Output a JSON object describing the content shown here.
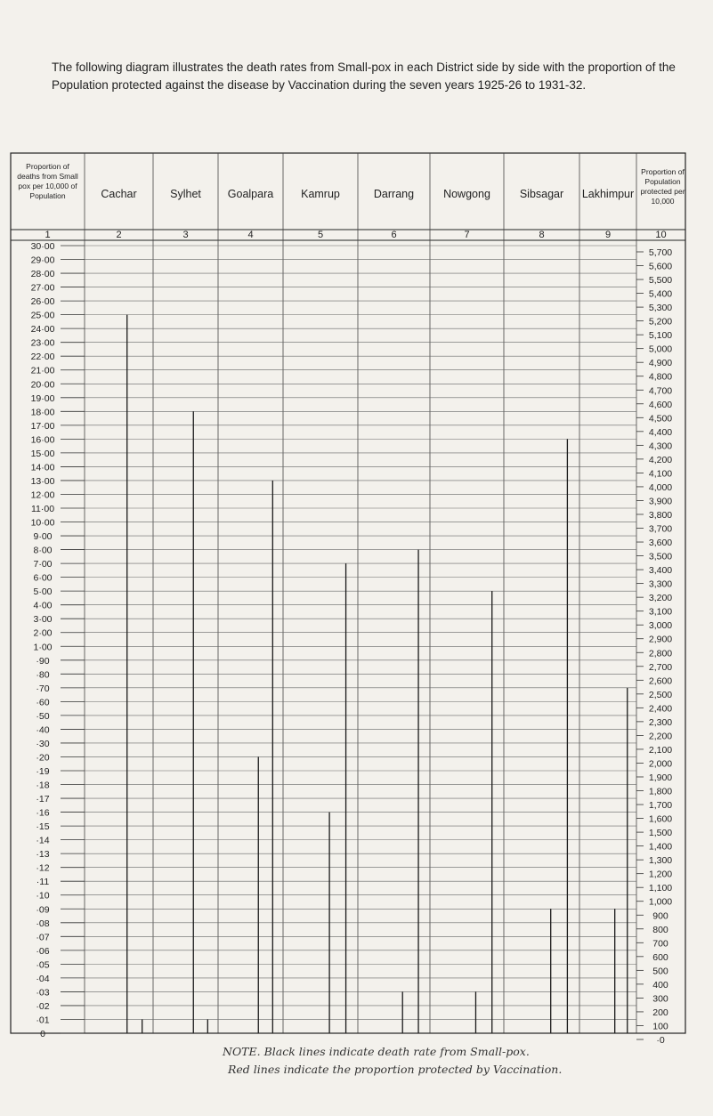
{
  "caption": "The following diagram illustrates the death rates from Small-pox in each District side by side with the proportion of the Population protected against the disease by Vaccination during the seven years 1925-26 to 1931-32.",
  "header": {
    "left_title": "Proportion of deaths from Small pox per 10,000 of Population",
    "right_title": "Proportion of Population protected per 10,000"
  },
  "chart_data": {
    "type": "bar",
    "categories": [
      "Cachar",
      "Sylhet",
      "Goalpara",
      "Kamrup",
      "Darrang",
      "Nowgong",
      "Sibsagar",
      "Lakhimpur"
    ],
    "column_numbers": [
      "1",
      "2",
      "3",
      "4",
      "5",
      "6",
      "7",
      "8",
      "9",
      "10"
    ],
    "left_ticks": [
      "30·00",
      "29·00",
      "28·00",
      "27·00",
      "26·00",
      "25·00",
      "24·00",
      "23·00",
      "22·00",
      "21·00",
      "20·00",
      "19·00",
      "18·00",
      "17·00",
      "16·00",
      "15·00",
      "14·00",
      "13·00",
      "12·00",
      "11·00",
      "10·00",
      "9·00",
      "8·00",
      "7·00",
      "6·00",
      "5·00",
      "4·00",
      "3·00",
      "2·00",
      "1·00",
      "·90",
      "·80",
      "·70",
      "·60",
      "·50",
      "·40",
      "·30",
      "·20",
      "·19",
      "·18",
      "·17",
      "·16",
      "·15",
      "·14",
      "·13",
      "·12",
      "·11",
      "·10",
      "·09",
      "·08",
      "·07",
      "·06",
      "·05",
      "·04",
      "·03",
      "·02",
      "·01",
      "0"
    ],
    "right_ticks": [
      "5,700",
      "5,600",
      "5,500",
      "5,400",
      "5,300",
      "5,200",
      "5,100",
      "5,000",
      "4,900",
      "4,800",
      "4,700",
      "4,600",
      "4,500",
      "4,400",
      "4,300",
      "4,200",
      "4,100",
      "4,000",
      "3,900",
      "3,800",
      "3,700",
      "3,600",
      "3,500",
      "3,400",
      "3,300",
      "3,200",
      "3,100",
      "3,000",
      "2,900",
      "2,800",
      "2,700",
      "2,600",
      "2,500",
      "2,400",
      "2,300",
      "2,200",
      "2,100",
      "2,000",
      "1,900",
      "1,800",
      "1,700",
      "1,600",
      "1,500",
      "1,400",
      "1,300",
      "1,200",
      "1,100",
      "1,000",
      "900",
      "800",
      "700",
      "600",
      "500",
      "400",
      "300",
      "200",
      "100",
      "·0"
    ],
    "series": [
      {
        "name": "Black lines indicate death rate from Small-pox.",
        "color": "#1a1a1a",
        "values": [
          25.0,
          18.0,
          0.2,
          0.16,
          0.03,
          0.03,
          0.09,
          0.09
        ]
      },
      {
        "name": "Red lines indicate the proportion protected by Vaccination.",
        "color": "#1a1a1a",
        "values": [
          0.01,
          0.01,
          13.0,
          7.0,
          8.0,
          5.0,
          16.0,
          0.7
        ]
      }
    ],
    "grid": true
  },
  "note": {
    "line1": "NOTE. Black lines indicate death rate from Small-pox.",
    "line2": "Red lines indicate the proportion protected by Vaccination."
  }
}
